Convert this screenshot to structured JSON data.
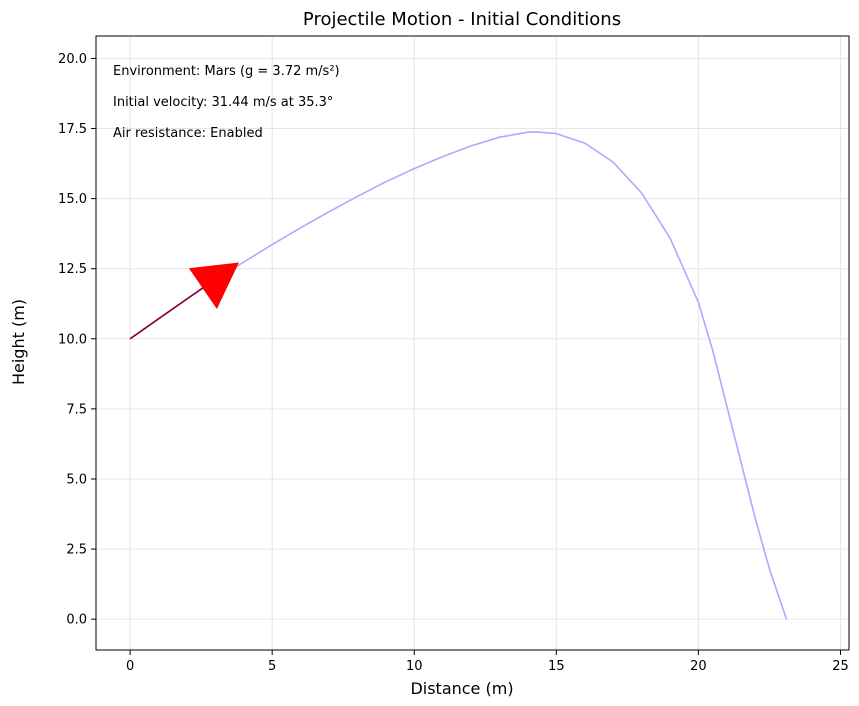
{
  "chart_data": {
    "type": "line",
    "title": "Projectile Motion - Initial Conditions",
    "xlabel": "Distance (m)",
    "ylabel": "Height (m)",
    "xlim": [
      -1.2,
      25.3
    ],
    "ylim": [
      -1.1,
      20.8
    ],
    "grid": true,
    "x_ticks": [
      0,
      5,
      10,
      15,
      20,
      25
    ],
    "y_ticks": [
      0.0,
      2.5,
      5.0,
      7.5,
      10.0,
      12.5,
      15.0,
      17.5,
      20.0
    ],
    "x_tick_labels": [
      "0",
      "5",
      "10",
      "15",
      "20",
      "25"
    ],
    "y_tick_labels": [
      "0.0",
      "2.5",
      "5.0",
      "7.5",
      "10.0",
      "12.5",
      "15.0",
      "17.5",
      "20.0"
    ],
    "annotations": [
      "Environment: Mars (g = 3.72 m/s²)",
      "Initial velocity: 31.44 m/s at 35.3°",
      "Air resistance: Enabled"
    ],
    "series": [
      {
        "color": "#aaaaff",
        "x": [
          0,
          1,
          2,
          3,
          4,
          5,
          6,
          7,
          8,
          9,
          10,
          11,
          12,
          13,
          14,
          14.3,
          15,
          16,
          17,
          18,
          19,
          20,
          20.5,
          21,
          21.5,
          22,
          22.5,
          23.1
        ],
        "y": [
          10.0,
          10.72,
          11.42,
          12.09,
          12.74,
          13.36,
          13.96,
          14.53,
          15.08,
          15.6,
          16.07,
          16.5,
          16.88,
          17.19,
          17.37,
          17.38,
          17.32,
          16.98,
          16.3,
          15.2,
          13.6,
          11.3,
          9.6,
          7.6,
          5.6,
          3.6,
          1.8,
          0.0
        ]
      }
    ],
    "velocity_arrow": {
      "color": "#ff0000",
      "start": [
        0,
        10.0
      ],
      "end": [
        3.8,
        12.7
      ],
      "head_tip": [
        3.8,
        12.7
      ],
      "head_base_a": [
        2.1,
        12.5
      ],
      "head_base_b": [
        3.05,
        11.1
      ]
    }
  }
}
